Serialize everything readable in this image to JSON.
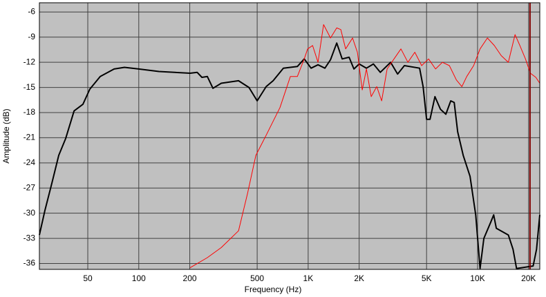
{
  "chart_data": {
    "type": "line",
    "xlabel": "Frequency (Hz)",
    "ylabel": "Amplitude (dB)",
    "xscale": "log",
    "grid": true,
    "background": "#c0c0c0",
    "xlim": [
      25.9,
      23300
    ],
    "ylim": [
      -36.7,
      -4.9
    ],
    "xticks": [
      50,
      100,
      200,
      500,
      {
        "value": 1000,
        "label": "1K"
      },
      {
        "value": 2000,
        "label": "2K"
      },
      {
        "value": 5000,
        "label": "5K"
      },
      {
        "value": 10000,
        "label": "10K"
      },
      {
        "value": 20000,
        "label": "20K"
      }
    ],
    "yticks": [
      -6,
      -9,
      -12,
      -15,
      -18,
      -21,
      -24,
      -27,
      -30,
      -33,
      -36
    ],
    "cursor": 20400,
    "cursor_color": "#800000",
    "series": [
      {
        "color": "#000000",
        "width": 2,
        "x": [
          25.9,
          27.9,
          30.7,
          33.7,
          37,
          41.5,
          46.8,
          51.4,
          59.2,
          71.5,
          82.3,
          100,
          131.5,
          201,
          221,
          236,
          254,
          274,
          307,
          388,
          447,
          500,
          565,
          621,
          714,
          863,
          948,
          1040,
          1143,
          1256,
          1355,
          1474,
          1588,
          1745,
          1863,
          2000,
          2208,
          2427,
          2667,
          3069,
          3372,
          3700,
          4550,
          4770,
          5000,
          5240,
          5600,
          6040,
          6500,
          6950,
          7280,
          7630,
          8230,
          9030,
          9750,
          10350,
          10900,
          12000,
          12450,
          12900,
          15200,
          16200,
          17000,
          21300,
          22300,
          23300
        ],
        "values": [
          -32.6,
          -29.7,
          -26.4,
          -23.1,
          -21.1,
          -17.8,
          -17.0,
          -15.2,
          -13.7,
          -12.8,
          -12.6,
          -12.8,
          -13.1,
          -13.3,
          -13.2,
          -13.8,
          -13.7,
          -15.1,
          -14.5,
          -14.2,
          -15.0,
          -16.6,
          -14.9,
          -14.2,
          -12.7,
          -12.5,
          -11.6,
          -12.7,
          -12.3,
          -12.7,
          -11.7,
          -9.7,
          -11.6,
          -11.4,
          -12.8,
          -12.2,
          -12.7,
          -12.2,
          -13.2,
          -12.0,
          -13.4,
          -12.4,
          -12.7,
          -14.9,
          -18.8,
          -18.8,
          -16.1,
          -17.6,
          -18.2,
          -16.6,
          -16.8,
          -20.3,
          -23.1,
          -25.6,
          -30.2,
          -36.6,
          -33.0,
          -31.0,
          -30.2,
          -31.8,
          -32.6,
          -34.3,
          -36.6,
          -36.3,
          -34.3,
          -30.2
        ]
      },
      {
        "color": "#ff0000",
        "width": 1,
        "x": [
          201,
          254,
          307,
          388,
          438,
          491,
          565,
          682,
          785,
          863,
          948,
          993,
          1062,
          1143,
          1233,
          1355,
          1474,
          1559,
          1664,
          1828,
          1953,
          2086,
          2208,
          2356,
          2540,
          2716,
          2925,
          3214,
          3530,
          3880,
          4264,
          4680,
          5140,
          5650,
          6200,
          6820,
          7500,
          8080,
          8630,
          9480,
          10350,
          11430,
          12560,
          13800,
          15200,
          16640,
          17780,
          19190,
          20500,
          22080,
          23300
        ],
        "values": [
          -36.5,
          -35.3,
          -34.1,
          -32.1,
          -27.7,
          -23.1,
          -20.7,
          -17.4,
          -13.7,
          -13.7,
          -11.6,
          -10.4,
          -10.0,
          -12.0,
          -7.5,
          -9.1,
          -7.9,
          -8.1,
          -10.4,
          -9.1,
          -10.8,
          -15.3,
          -12.8,
          -16.1,
          -14.9,
          -16.6,
          -12.8,
          -11.6,
          -10.4,
          -12.0,
          -10.8,
          -12.4,
          -11.6,
          -12.8,
          -12.0,
          -12.4,
          -14.1,
          -14.9,
          -13.7,
          -12.4,
          -10.4,
          -9.1,
          -10.0,
          -11.2,
          -12.0,
          -8.7,
          -10.0,
          -11.6,
          -13.3,
          -13.8,
          -14.5
        ]
      }
    ]
  }
}
